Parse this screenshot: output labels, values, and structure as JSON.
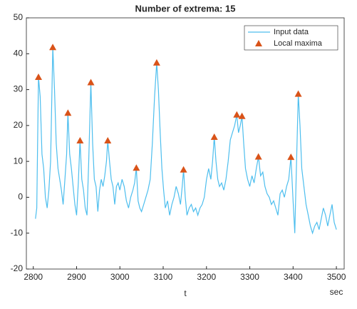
{
  "chart_data": {
    "type": "line",
    "title": "Number of extrema: 15",
    "xlabel": "t",
    "xunit": "sec",
    "xlim": [
      2784,
      3518
    ],
    "ylim": [
      -20,
      50
    ],
    "xticks": [
      2800,
      2900,
      3000,
      3100,
      3200,
      3300,
      3400,
      3500
    ],
    "yticks": [
      -20,
      -10,
      0,
      10,
      20,
      30,
      40,
      50
    ],
    "legend": "top-right",
    "series": [
      {
        "name": "Input data",
        "color": "#4dbeee",
        "mode": "line",
        "x": [
          2805,
          2808,
          2812,
          2816,
          2820,
          2824,
          2828,
          2832,
          2836,
          2840,
          2845,
          2849,
          2853,
          2857,
          2861,
          2865,
          2869,
          2873,
          2877,
          2880,
          2884,
          2888,
          2892,
          2896,
          2900,
          2904,
          2908,
          2912,
          2916,
          2920,
          2924,
          2928,
          2933,
          2937,
          2941,
          2945,
          2949,
          2953,
          2957,
          2961,
          2965,
          2969,
          2972,
          2976,
          2980,
          2984,
          2988,
          2992,
          2996,
          3000,
          3005,
          3010,
          3015,
          3020,
          3025,
          3030,
          3034,
          3038,
          3042,
          3046,
          3050,
          3055,
          3060,
          3065,
          3070,
          3075,
          3080,
          3085,
          3089,
          3093,
          3097,
          3101,
          3105,
          3110,
          3115,
          3120,
          3125,
          3130,
          3135,
          3140,
          3144,
          3147,
          3151,
          3155,
          3160,
          3165,
          3170,
          3175,
          3180,
          3185,
          3190,
          3195,
          3200,
          3205,
          3210,
          3214,
          3218,
          3222,
          3226,
          3230,
          3235,
          3240,
          3245,
          3250,
          3255,
          3260,
          3265,
          3270,
          3274,
          3278,
          3282,
          3286,
          3290,
          3295,
          3300,
          3305,
          3310,
          3315,
          3320,
          3325,
          3330,
          3335,
          3340,
          3345,
          3350,
          3355,
          3360,
          3365,
          3370,
          3375,
          3380,
          3385,
          3390,
          3395,
          3400,
          3404,
          3408,
          3412,
          3416,
          3420,
          3425,
          3430,
          3435,
          3440,
          3445,
          3450,
          3455,
          3460,
          3465,
          3470,
          3475,
          3480,
          3485,
          3490,
          3495,
          3500
        ],
        "values": [
          -6,
          -3,
          33.5,
          28,
          12,
          8,
          0,
          -3,
          2,
          10,
          41.8,
          30,
          15,
          8,
          5,
          2,
          -2,
          5,
          12,
          23.5,
          12,
          8,
          3,
          -2,
          -5,
          4,
          15.8,
          5,
          2,
          -3,
          -5,
          10,
          32,
          15,
          5,
          3,
          -4,
          2,
          5,
          3,
          6,
          10,
          15.8,
          10,
          5,
          3,
          -2,
          3,
          4,
          2,
          5,
          3,
          -1,
          -3,
          0,
          2,
          4,
          8.2,
          -1,
          -3,
          -4,
          -2,
          0,
          2,
          5,
          15,
          28,
          37.5,
          30,
          18,
          8,
          2,
          -3,
          -1,
          -5,
          -2,
          0,
          3,
          1,
          -2,
          3,
          7.7,
          0,
          -5,
          -3,
          -2,
          -4,
          -3,
          -5,
          -3,
          -2,
          0,
          5,
          8,
          5,
          10,
          16.8,
          10,
          5,
          3,
          4,
          2,
          5,
          10,
          16,
          18,
          20,
          23,
          18,
          20,
          22.6,
          15,
          8,
          5,
          3,
          6,
          4,
          8,
          11.3,
          6,
          7,
          3,
          1,
          0,
          -2,
          -1,
          -3,
          -5,
          1,
          2,
          0,
          3,
          5,
          11.2,
          -1,
          -10,
          10,
          28.8,
          20,
          8,
          3,
          -2,
          -5,
          -8,
          -10,
          -8,
          -7,
          -9,
          -6,
          -3,
          -5,
          -8,
          -5,
          -2,
          -7,
          -9
        ]
      },
      {
        "name": "Local maxima",
        "color": "#d95319",
        "mode": "marker",
        "x": [
          2812,
          2845,
          2880,
          2908,
          2933,
          2972,
          3038,
          3085,
          3147,
          3218,
          3270,
          3282,
          3320,
          3395,
          3412
        ],
        "values": [
          33.5,
          41.8,
          23.5,
          15.8,
          32,
          15.8,
          8.2,
          37.5,
          7.7,
          16.8,
          23,
          22.6,
          11.3,
          11.2,
          28.8
        ]
      }
    ]
  }
}
